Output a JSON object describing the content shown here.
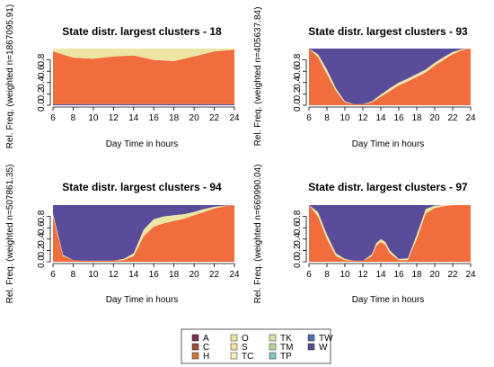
{
  "figure": {
    "xlabel": "Day Time in hours",
    "colors": {
      "A": "#7b2d52",
      "C": "#9c4a3a",
      "H": "#c9783c",
      "O": "#ece6a4",
      "S": "#f3e1a6",
      "TC": "#f6efbf",
      "TK": "#d4e4a6",
      "TM": "#b9d69a",
      "TP": "#7fc8c0",
      "TW": "#4d6fb3",
      "W": "#5b4b9b",
      "orange": "#f26d3d"
    }
  },
  "legend": {
    "entries": [
      {
        "code": "A",
        "color": "#7b2d52"
      },
      {
        "code": "C",
        "color": "#9c4a3a"
      },
      {
        "code": "H",
        "color": "#c9783c"
      },
      {
        "code": "O",
        "color": "#ece6a4"
      },
      {
        "code": "S",
        "color": "#f3e1a6"
      },
      {
        "code": "TC",
        "color": "#f6efbf"
      },
      {
        "code": "TK",
        "color": "#d4e4a6"
      },
      {
        "code": "TM",
        "color": "#b9d69a"
      },
      {
        "code": "TP",
        "color": "#7fc8c0"
      },
      {
        "code": "TW",
        "color": "#4d6fb3"
      },
      {
        "code": "W",
        "color": "#5b4b9b"
      }
    ]
  },
  "chart_data": [
    {
      "type": "area",
      "title": "State distr. largest clusters - 18",
      "ylabel": "Rel. Freq. (weighted n=1867095.91)",
      "xlabel": "Day Time in hours",
      "x_ticks": [
        6,
        8,
        10,
        12,
        14,
        16,
        18,
        20,
        22,
        24
      ],
      "y_ticks": [
        "0.0",
        "0.2",
        "0.4",
        "0.6",
        "0.8"
      ],
      "xlim": [
        6,
        24
      ],
      "ylim": [
        0,
        1
      ],
      "series_order": [
        "W",
        "orange",
        "O"
      ],
      "x": [
        6,
        8,
        10,
        12,
        14,
        16,
        18,
        20,
        22,
        24
      ],
      "series": [
        {
          "key": "W",
          "values": [
            0.02,
            0.02,
            0.02,
            0.02,
            0.02,
            0.02,
            0.02,
            0.02,
            0.02,
            0.02
          ]
        },
        {
          "key": "orange",
          "values": [
            0.93,
            0.82,
            0.8,
            0.84,
            0.86,
            0.78,
            0.76,
            0.84,
            0.93,
            0.96
          ]
        },
        {
          "key": "O",
          "values": [
            0.05,
            0.16,
            0.18,
            0.14,
            0.12,
            0.2,
            0.22,
            0.14,
            0.05,
            0.02
          ]
        }
      ]
    },
    {
      "type": "area",
      "title": "State distr. largest clusters - 93",
      "ylabel": "Rel. Freq. (weighted n=405637.84)",
      "xlabel": "Day Time in hours",
      "x_ticks": [
        6,
        8,
        10,
        12,
        14,
        16,
        18,
        20,
        22,
        24
      ],
      "y_ticks": [
        "0.0",
        "0.2",
        "0.4",
        "0.6",
        "0.8"
      ],
      "xlim": [
        6,
        24
      ],
      "ylim": [
        0,
        1
      ],
      "series_order": [
        "orange",
        "O",
        "W"
      ],
      "x": [
        6,
        7,
        8,
        9,
        10,
        11,
        12,
        13,
        14,
        15,
        16,
        17,
        18,
        19,
        20,
        21,
        22,
        23,
        24
      ],
      "series": [
        {
          "key": "orange",
          "values": [
            1.0,
            0.85,
            0.55,
            0.25,
            0.05,
            0.02,
            0.02,
            0.05,
            0.15,
            0.25,
            0.35,
            0.42,
            0.5,
            0.58,
            0.7,
            0.8,
            0.9,
            0.97,
            1.0
          ]
        },
        {
          "key": "O",
          "values": [
            0.0,
            0.05,
            0.08,
            0.05,
            0.02,
            0.0,
            0.0,
            0.02,
            0.04,
            0.05,
            0.05,
            0.05,
            0.05,
            0.05,
            0.05,
            0.05,
            0.04,
            0.02,
            0.0
          ]
        },
        {
          "key": "W",
          "values": [
            0.0,
            0.1,
            0.37,
            0.7,
            0.93,
            0.98,
            0.98,
            0.93,
            0.81,
            0.7,
            0.6,
            0.53,
            0.45,
            0.37,
            0.25,
            0.15,
            0.06,
            0.01,
            0.0
          ]
        }
      ]
    },
    {
      "type": "area",
      "title": "State distr. largest clusters - 94",
      "ylabel": "Rel. Freq. (weighted n=507861.35)",
      "xlabel": "Day Time in hours",
      "x_ticks": [
        6,
        8,
        10,
        12,
        14,
        16,
        18,
        20,
        22,
        24
      ],
      "y_ticks": [
        "0.0",
        "0.2",
        "0.4",
        "0.6",
        "0.8"
      ],
      "xlim": [
        6,
        24
      ],
      "ylim": [
        0,
        1
      ],
      "series_order": [
        "orange",
        "O",
        "W"
      ],
      "x": [
        6,
        7,
        8,
        9,
        10,
        11,
        12,
        13,
        14,
        15,
        16,
        17,
        18,
        19,
        20,
        21,
        22,
        23,
        24
      ],
      "series": [
        {
          "key": "orange",
          "values": [
            0.8,
            0.1,
            0.03,
            0.02,
            0.02,
            0.02,
            0.02,
            0.03,
            0.1,
            0.45,
            0.62,
            0.68,
            0.72,
            0.76,
            0.82,
            0.88,
            0.94,
            0.98,
            1.0
          ]
        },
        {
          "key": "O",
          "values": [
            0.05,
            0.02,
            0.0,
            0.0,
            0.0,
            0.0,
            0.0,
            0.02,
            0.05,
            0.12,
            0.13,
            0.12,
            0.1,
            0.08,
            0.06,
            0.05,
            0.03,
            0.01,
            0.0
          ]
        },
        {
          "key": "W",
          "values": [
            0.15,
            0.88,
            0.97,
            0.98,
            0.98,
            0.98,
            0.98,
            0.95,
            0.85,
            0.43,
            0.25,
            0.2,
            0.18,
            0.16,
            0.12,
            0.07,
            0.03,
            0.01,
            0.0
          ]
        }
      ]
    },
    {
      "type": "area",
      "title": "State distr. largest clusters - 97",
      "ylabel": "Rel. Freq. (weighted n=669990.04)",
      "xlabel": "Day Time in hours",
      "x_ticks": [
        6,
        8,
        10,
        12,
        14,
        16,
        18,
        20,
        22,
        24
      ],
      "y_ticks": [
        "0.0",
        "0.2",
        "0.4",
        "0.6",
        "0.8"
      ],
      "xlim": [
        6,
        24
      ],
      "ylim": [
        0,
        1
      ],
      "series_order": [
        "orange",
        "O",
        "W"
      ],
      "x": [
        6,
        7,
        8,
        9,
        10,
        11,
        12,
        13,
        13.5,
        14,
        14.5,
        15,
        16,
        17,
        18,
        19,
        20,
        21,
        22,
        23,
        24
      ],
      "series": [
        {
          "key": "orange",
          "values": [
            1.0,
            0.8,
            0.4,
            0.1,
            0.03,
            0.02,
            0.02,
            0.1,
            0.28,
            0.35,
            0.3,
            0.15,
            0.03,
            0.03,
            0.4,
            0.85,
            0.95,
            0.98,
            1.0,
            1.0,
            1.0
          ]
        },
        {
          "key": "O",
          "values": [
            0.0,
            0.08,
            0.08,
            0.05,
            0.02,
            0.0,
            0.0,
            0.03,
            0.05,
            0.05,
            0.05,
            0.05,
            0.02,
            0.03,
            0.08,
            0.08,
            0.04,
            0.02,
            0.0,
            0.0,
            0.0
          ]
        },
        {
          "key": "W",
          "values": [
            0.0,
            0.12,
            0.52,
            0.85,
            0.95,
            0.98,
            0.98,
            0.87,
            0.67,
            0.6,
            0.65,
            0.8,
            0.95,
            0.94,
            0.52,
            0.07,
            0.01,
            0.0,
            0.0,
            0.0,
            0.0
          ]
        }
      ]
    }
  ]
}
